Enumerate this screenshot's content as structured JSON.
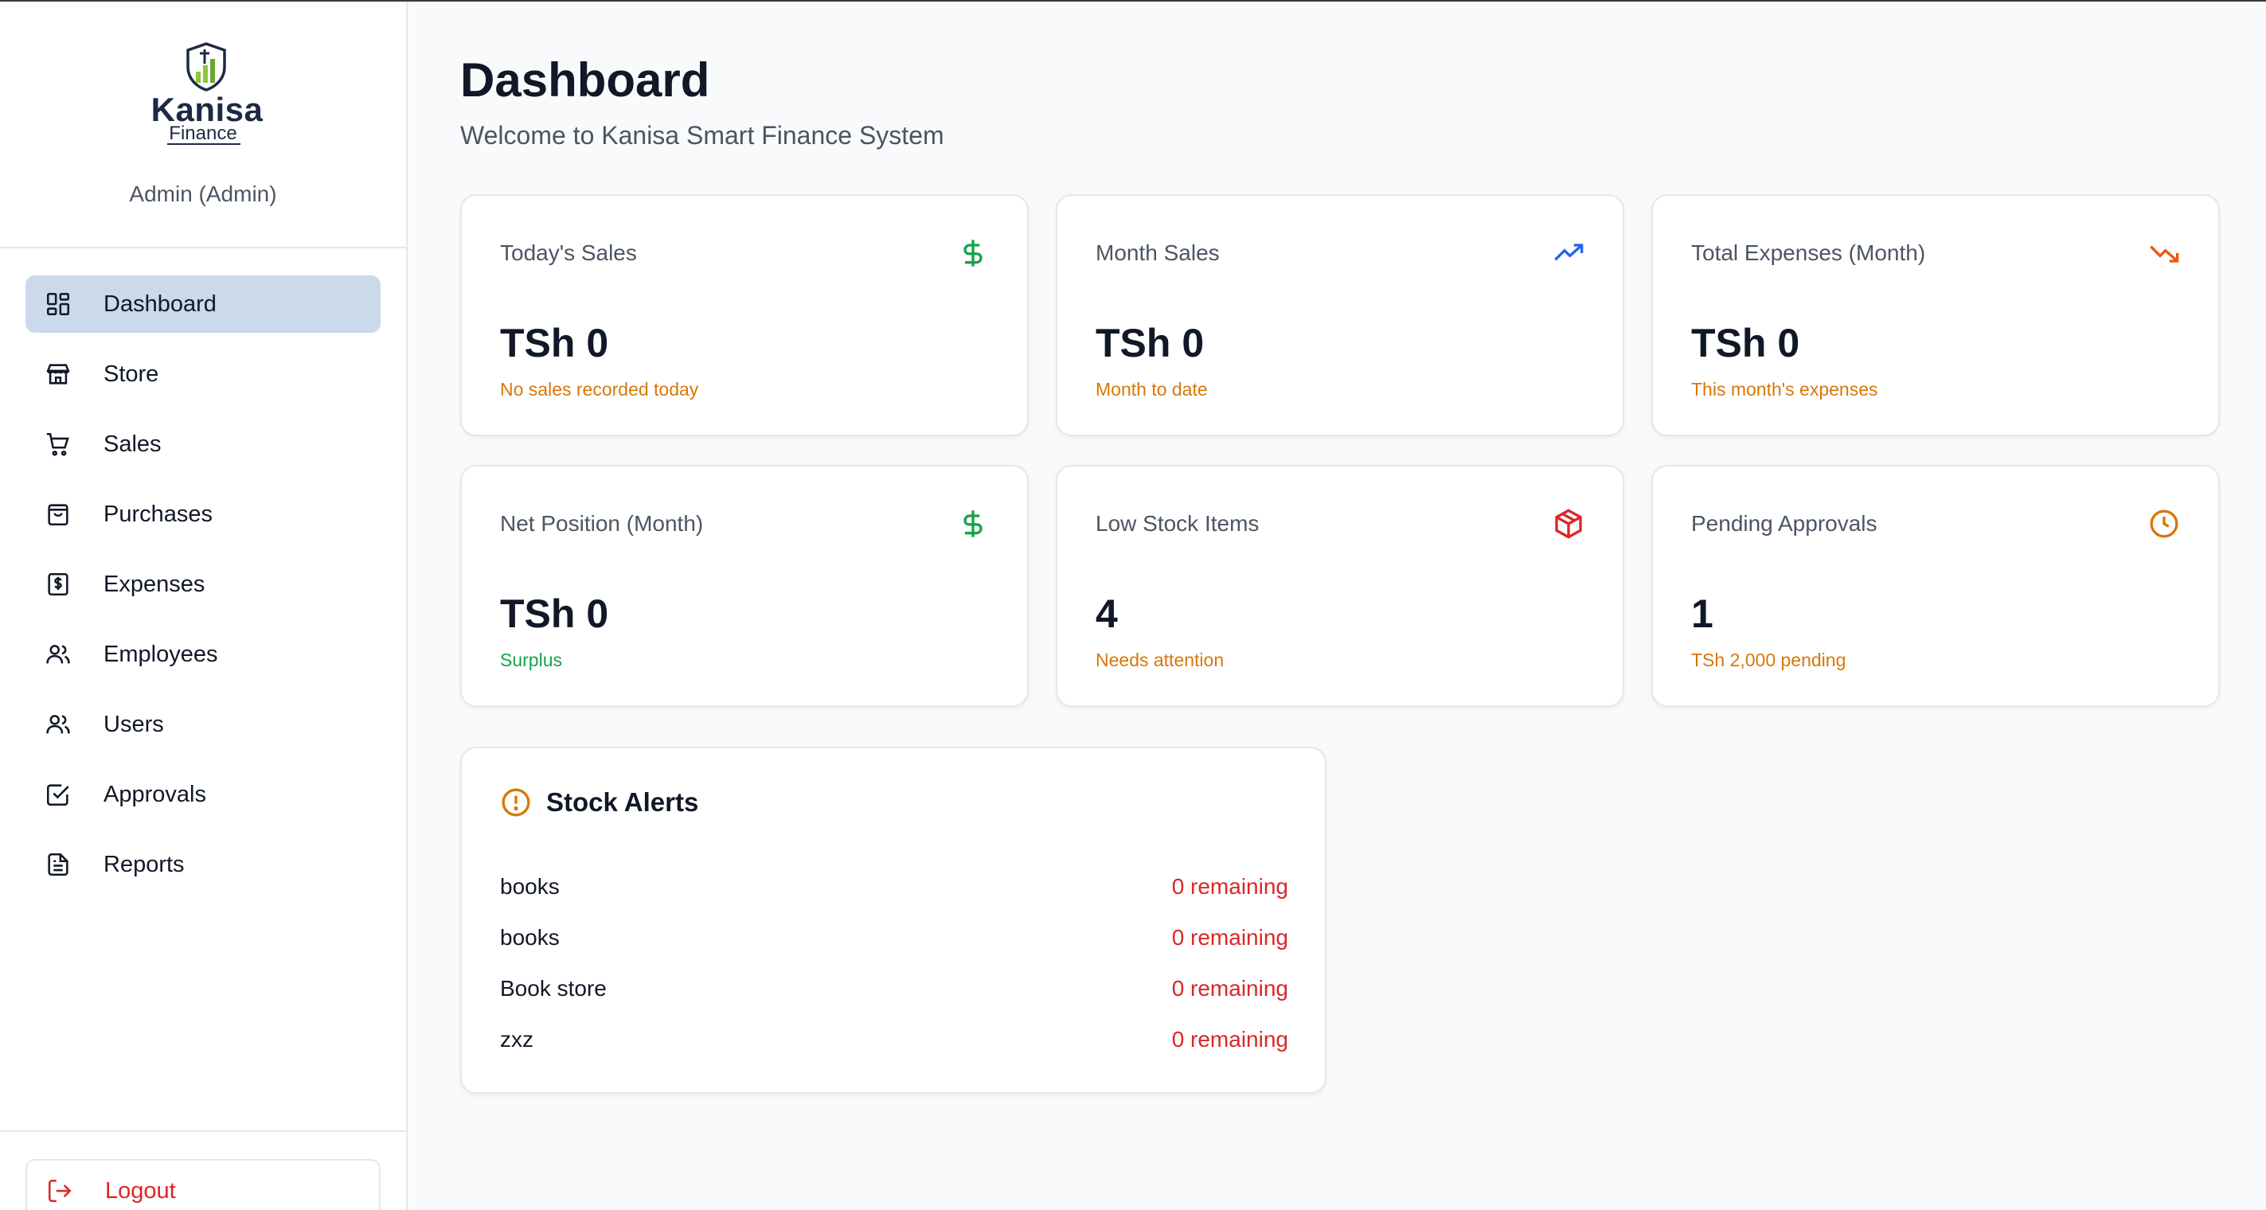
{
  "brand": {
    "name": "Kanisa",
    "sub": "Finance",
    "user": "Admin (Admin)"
  },
  "nav": {
    "items": [
      {
        "label": "Dashboard",
        "icon": "dashboard-icon"
      },
      {
        "label": "Store",
        "icon": "store-icon"
      },
      {
        "label": "Sales",
        "icon": "cart-icon"
      },
      {
        "label": "Purchases",
        "icon": "bag-icon"
      },
      {
        "label": "Expenses",
        "icon": "receipt-icon"
      },
      {
        "label": "Employees",
        "icon": "employees-icon"
      },
      {
        "label": "Users",
        "icon": "users-icon"
      },
      {
        "label": "Approvals",
        "icon": "check-square-icon"
      },
      {
        "label": "Reports",
        "icon": "document-icon"
      }
    ],
    "logout": "Logout"
  },
  "header": {
    "title": "Dashboard",
    "subtitle": "Welcome to Kanisa Smart Finance System"
  },
  "cards": [
    {
      "label": "Today's Sales",
      "value": "TSh 0",
      "note": "No sales recorded today",
      "icon": "dollar-icon"
    },
    {
      "label": "Month Sales",
      "value": "TSh 0",
      "note": "Month to date",
      "icon": "trending-up-icon"
    },
    {
      "label": "Total Expenses (Month)",
      "value": "TSh 0",
      "note": "This month's expenses",
      "icon": "trending-down-icon"
    },
    {
      "label": "Net Position (Month)",
      "value": "TSh 0",
      "note": "Surplus",
      "icon": "dollar-icon"
    },
    {
      "label": "Low Stock Items",
      "value": "4",
      "note": "Needs attention",
      "icon": "package-icon"
    },
    {
      "label": "Pending Approvals",
      "value": "1",
      "note": "TSh 2,000 pending",
      "icon": "clock-icon"
    }
  ],
  "alerts": {
    "title": "Stock Alerts",
    "items": [
      {
        "name": "books",
        "status": "0 remaining"
      },
      {
        "name": "books",
        "status": "0 remaining"
      },
      {
        "name": "Book store",
        "status": "0 remaining"
      },
      {
        "name": "zxz",
        "status": "0 remaining"
      }
    ]
  },
  "colors": {
    "active_nav": "#cbd9ea",
    "green": "#16a34a",
    "blue": "#2563eb",
    "orange": "#ea580c",
    "amber": "#d97706",
    "red": "#dc2626"
  }
}
